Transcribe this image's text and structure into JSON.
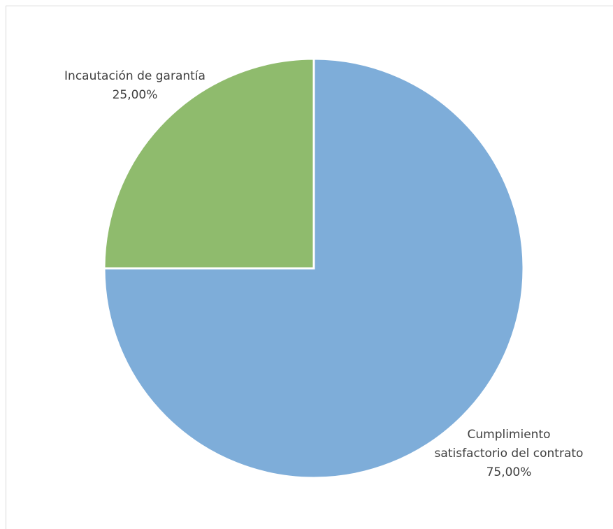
{
  "chart_data": {
    "type": "pie",
    "title": "",
    "slices": [
      {
        "label_lines": [
          "Cumplimiento",
          "satisfactorio del contrato"
        ],
        "value": 75.0,
        "value_label": "75,00%",
        "color": "#7eadd9"
      },
      {
        "label_lines": [
          "Incautación de garantía"
        ],
        "value": 25.0,
        "value_label": "25,00%",
        "color": "#8fbb6d"
      }
    ],
    "legend": "none",
    "data_labels": "category name and percentage"
  }
}
